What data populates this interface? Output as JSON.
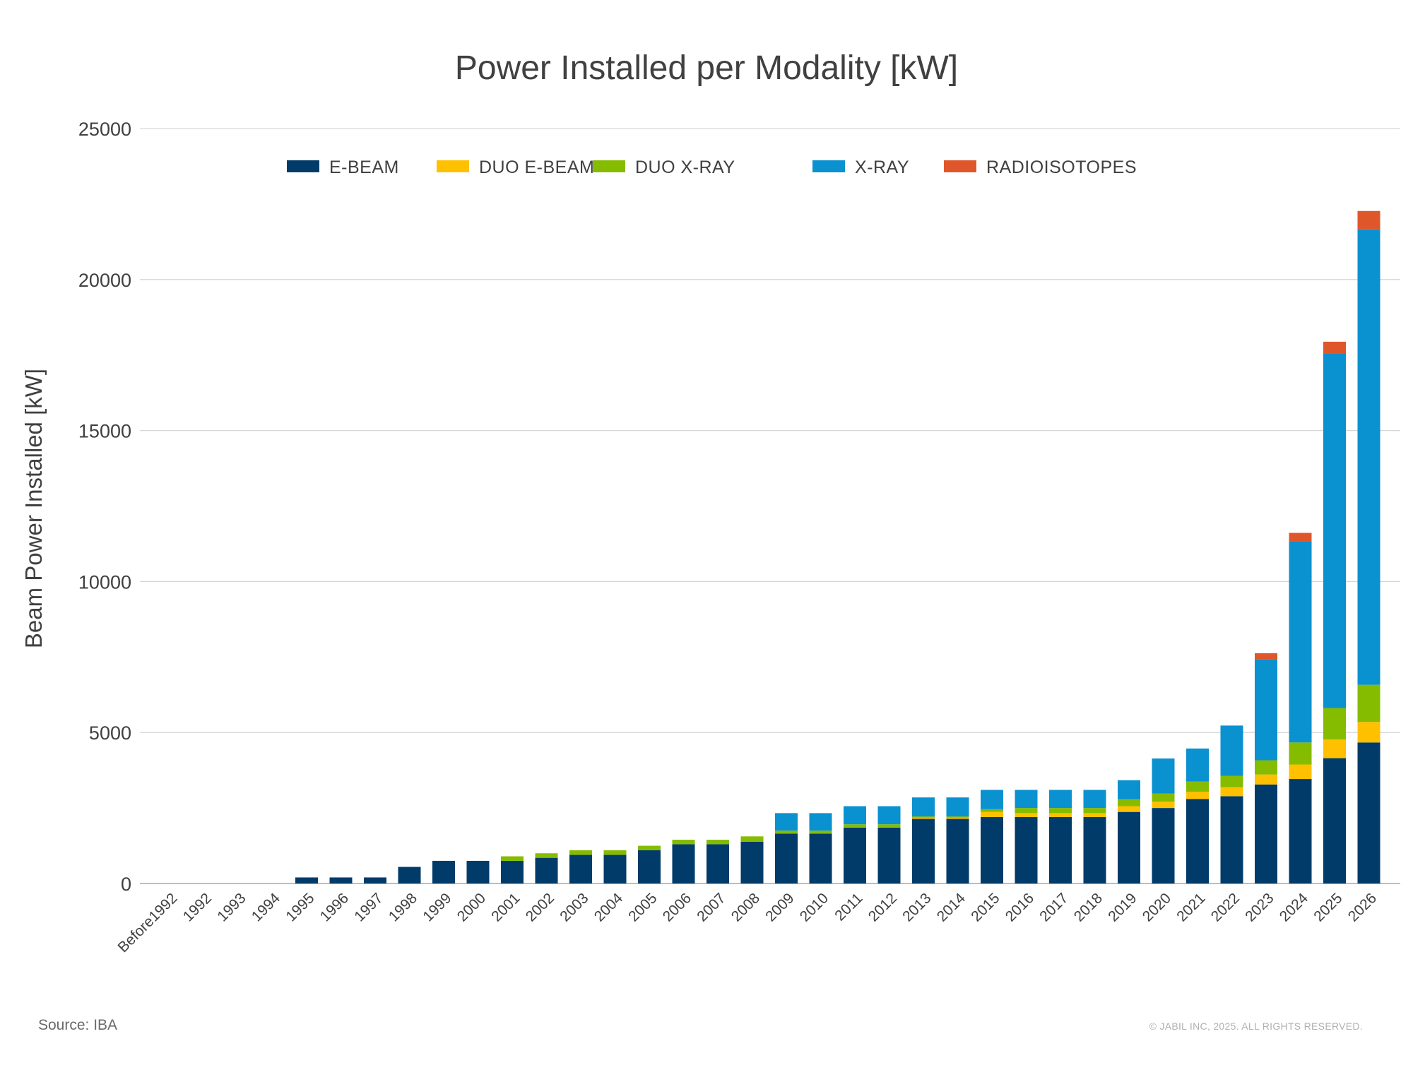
{
  "chart_data": {
    "type": "bar",
    "stacked": true,
    "title": "Power Installed per Modality [kW]",
    "xlabel": "",
    "ylabel": "Beam Power Installed [kW]",
    "ylim": [
      0,
      25000
    ],
    "yticks": [
      0,
      5000,
      10000,
      15000,
      20000,
      25000
    ],
    "grid": true,
    "legend_position": "top",
    "categories": [
      "Before1992",
      "1992",
      "1993",
      "1994",
      "1995",
      "1996",
      "1997",
      "1998",
      "1999",
      "2000",
      "2001",
      "2002",
      "2003",
      "2004",
      "2005",
      "2006",
      "2007",
      "2008",
      "2009",
      "2010",
      "2011",
      "2012",
      "2013",
      "2014",
      "2015",
      "2016",
      "2017",
      "2018",
      "2019",
      "2020",
      "2021",
      "2022",
      "2023",
      "2024",
      "2025",
      "2026"
    ],
    "series": [
      {
        "name": "E-BEAM",
        "color": "#003b6a",
        "values": [
          0,
          0,
          0,
          0,
          200,
          200,
          200,
          550,
          750,
          750,
          750,
          850,
          950,
          950,
          1100,
          1300,
          1300,
          1380,
          1650,
          1650,
          1850,
          1850,
          2140,
          2140,
          2200,
          2200,
          2200,
          2200,
          2370,
          2500,
          2800,
          2890,
          3280,
          3460,
          4150,
          4670
        ]
      },
      {
        "name": "DUO E-BEAM",
        "color": "#ffc000",
        "values": [
          0,
          0,
          0,
          0,
          0,
          0,
          0,
          0,
          0,
          0,
          0,
          0,
          0,
          0,
          0,
          0,
          0,
          0,
          0,
          0,
          0,
          0,
          40,
          40,
          170,
          130,
          130,
          130,
          190,
          210,
          240,
          300,
          330,
          480,
          620,
          680
        ]
      },
      {
        "name": "DUO X-RAY",
        "color": "#85bc00",
        "values": [
          0,
          0,
          0,
          0,
          0,
          0,
          0,
          0,
          0,
          0,
          150,
          150,
          150,
          150,
          150,
          150,
          150,
          180,
          100,
          100,
          110,
          110,
          40,
          40,
          90,
          170,
          170,
          170,
          230,
          270,
          340,
          370,
          470,
          730,
          1040,
          1230
        ]
      },
      {
        "name": "X-RAY",
        "color": "#0a91d0",
        "values": [
          0,
          0,
          0,
          0,
          0,
          0,
          0,
          0,
          0,
          0,
          0,
          0,
          0,
          0,
          0,
          0,
          0,
          0,
          580,
          580,
          600,
          600,
          630,
          630,
          640,
          600,
          600,
          600,
          630,
          1160,
          1090,
          1670,
          3350,
          6650,
          11740,
          15080
        ]
      },
      {
        "name": "RADIOISOTOPES",
        "color": "#e0562b",
        "values": [
          0,
          0,
          0,
          0,
          0,
          0,
          0,
          0,
          0,
          0,
          0,
          0,
          0,
          0,
          0,
          0,
          0,
          0,
          0,
          0,
          0,
          0,
          0,
          0,
          0,
          0,
          0,
          0,
          0,
          0,
          0,
          0,
          195,
          290,
          390,
          610
        ]
      }
    ]
  },
  "footer": {
    "source": "Source: IBA",
    "copyright": "© JABIL INC, 2025. ALL RIGHTS RESERVED."
  }
}
